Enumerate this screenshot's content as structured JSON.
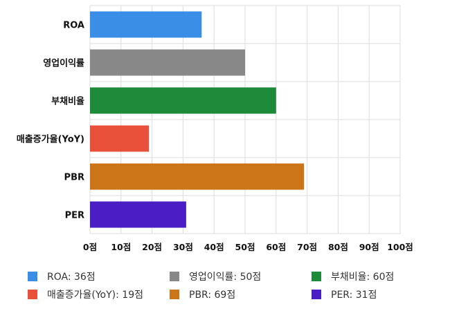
{
  "chart_data": {
    "type": "bar",
    "orientation": "horizontal",
    "categories": [
      "ROA",
      "영업이익률",
      "부채비율",
      "매출증가율(YoY)",
      "PBR",
      "PER"
    ],
    "values": [
      36,
      50,
      60,
      19,
      69,
      31
    ],
    "colors": [
      "#3a8ee6",
      "#888888",
      "#1d8a3a",
      "#e8503a",
      "#cc7418",
      "#4a1ec4"
    ],
    "xlim": [
      0,
      100
    ],
    "xticks": [
      "0점",
      "10점",
      "20점",
      "30점",
      "40점",
      "50점",
      "60점",
      "70점",
      "80점",
      "90점",
      "100점"
    ],
    "grid": true,
    "legend_position": "bottom",
    "legend": [
      {
        "label": "ROA: 36점",
        "color": "#3a8ee6"
      },
      {
        "label": "영업이익률: 50점",
        "color": "#888888"
      },
      {
        "label": "부채비율: 60점",
        "color": "#1d8a3a"
      },
      {
        "label": "매출증가율(YoY): 19점",
        "color": "#e8503a"
      },
      {
        "label": "PBR: 69점",
        "color": "#cc7418"
      },
      {
        "label": "PER: 31점",
        "color": "#4a1ec4"
      }
    ]
  }
}
